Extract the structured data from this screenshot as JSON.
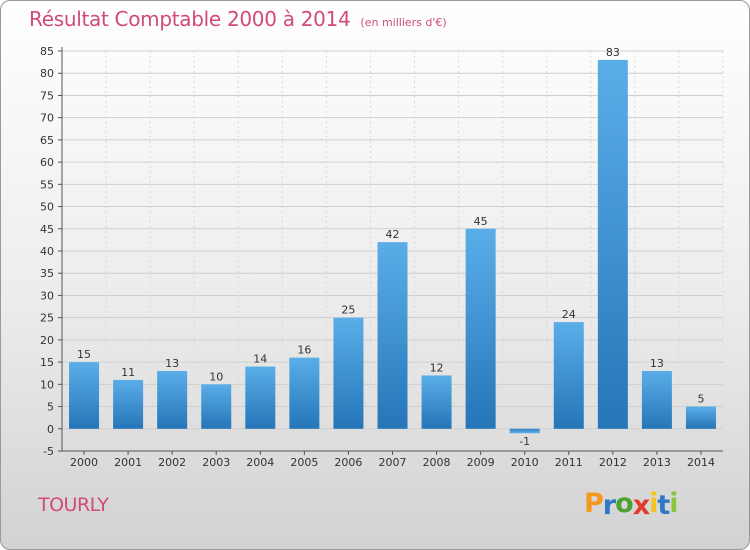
{
  "chart_data": {
    "type": "bar",
    "title": "Résultat Comptable 2000 à 2014",
    "unit": "(en milliers d'€)",
    "categories": [
      "2000",
      "2001",
      "2002",
      "2003",
      "2004",
      "2005",
      "2006",
      "2007",
      "2008",
      "2009",
      "2010",
      "2011",
      "2012",
      "2013",
      "2014"
    ],
    "values": [
      15,
      11,
      13,
      10,
      14,
      16,
      25,
      42,
      12,
      45,
      -1,
      24,
      83,
      13,
      5
    ],
    "value_labels": [
      "15",
      "11",
      "13",
      "10",
      "14",
      "16",
      "25",
      "42",
      "12",
      "45",
      "-1",
      "24",
      "83",
      "13",
      "5"
    ],
    "yticks": [
      -5,
      0,
      5,
      10,
      15,
      20,
      25,
      30,
      35,
      40,
      45,
      50,
      55,
      60,
      65,
      70,
      75,
      80,
      85
    ],
    "ylim": [
      -5,
      85
    ],
    "xlabel": "",
    "ylabel": "",
    "grid": true,
    "bar_color": "#3a8fd4"
  },
  "commune": "TOURLY",
  "logo": {
    "letters": [
      "P",
      "r",
      "o",
      "x",
      "i",
      "t",
      "i"
    ],
    "colors": [
      "#f39a1e",
      "#2f78c6",
      "#4aa331",
      "#e23b2e",
      "#f3c41e",
      "#2f78c6",
      "#8bc43f"
    ]
  }
}
